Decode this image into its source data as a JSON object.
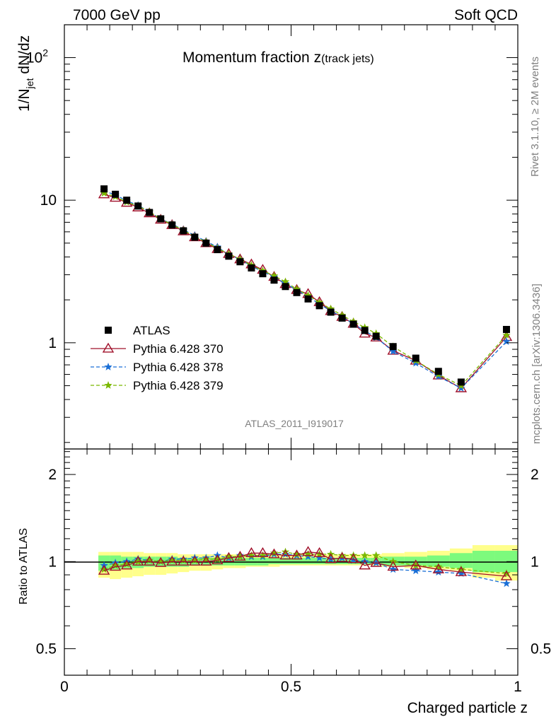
{
  "header": {
    "left": "7000 GeV pp",
    "right": "Soft QCD"
  },
  "side_text": {
    "top": "Rivet 3.1.10, ≥ 2M events",
    "bottom": "mcplots.cern.ch [arXiv:1306.3436]"
  },
  "analysis_id": "ATLAS_2011_I919017",
  "colors": {
    "atlas": "#000000",
    "p370": "#a0102a",
    "p378": "#1a6fd6",
    "p379": "#7ab800",
    "band_inner": "#7dfa7d",
    "band_outer": "#ffff8c"
  },
  "chart_data": [
    {
      "type": "line",
      "panel": "main",
      "title_main": "Momentum fraction z",
      "title_sub": "(track jets)",
      "ylabel": "1/N_jet dN/dz",
      "ylabel_main": "1/N",
      "ylabel_sub": "jet",
      "ylabel_tail": " dN/dz",
      "yscale": "log",
      "xlim": [
        0,
        1
      ],
      "ylim": [
        0.18,
        170
      ],
      "y_ticks": [
        {
          "v": 1,
          "label": "1"
        },
        {
          "v": 10,
          "label": "10"
        },
        {
          "v": 100,
          "label": "10",
          "sup": "2"
        }
      ],
      "x": [
        0.0875,
        0.1125,
        0.1375,
        0.1625,
        0.1875,
        0.2125,
        0.2375,
        0.2625,
        0.2875,
        0.3125,
        0.3375,
        0.3625,
        0.3875,
        0.4125,
        0.4375,
        0.4625,
        0.4875,
        0.5125,
        0.5375,
        0.5625,
        0.5875,
        0.6125,
        0.6375,
        0.6625,
        0.6875,
        0.725,
        0.775,
        0.825,
        0.875,
        0.975
      ],
      "series": [
        {
          "name": "ATLAS",
          "marker": "square",
          "values": [
            12.0,
            11.0,
            10.0,
            9.1,
            8.2,
            7.4,
            6.7,
            6.1,
            5.5,
            5.0,
            4.5,
            4.05,
            3.7,
            3.35,
            3.05,
            2.75,
            2.48,
            2.25,
            2.03,
            1.82,
            1.64,
            1.49,
            1.35,
            1.22,
            1.11,
            0.94,
            0.78,
            0.63,
            0.53,
            1.24
          ]
        },
        {
          "name": "Pythia 6.428 370",
          "marker": "triangle",
          "values": [
            11.0,
            10.4,
            9.6,
            8.9,
            8.1,
            7.3,
            6.7,
            6.05,
            5.5,
            5.0,
            4.55,
            4.2,
            3.85,
            3.55,
            3.25,
            2.9,
            2.58,
            2.35,
            2.2,
            1.93,
            1.67,
            1.52,
            1.36,
            1.16,
            1.09,
            0.88,
            0.75,
            0.59,
            0.48,
            1.1
          ]
        },
        {
          "name": "Pythia 6.428 378",
          "marker": "star",
          "values": [
            11.6,
            10.9,
            9.9,
            9.2,
            8.3,
            7.4,
            6.8,
            6.2,
            5.65,
            5.15,
            4.7,
            4.15,
            3.85,
            3.45,
            3.15,
            2.9,
            2.6,
            2.35,
            2.1,
            1.87,
            1.67,
            1.52,
            1.36,
            1.21,
            1.09,
            0.87,
            0.72,
            0.58,
            0.48,
            1.02
          ]
        },
        {
          "name": "Pythia 6.428 379",
          "marker": "star",
          "values": [
            11.2,
            10.6,
            9.7,
            9.1,
            8.3,
            7.4,
            6.75,
            6.15,
            5.55,
            5.1,
            4.6,
            4.2,
            3.85,
            3.5,
            3.2,
            2.95,
            2.68,
            2.38,
            2.15,
            1.92,
            1.73,
            1.56,
            1.41,
            1.28,
            1.16,
            0.94,
            0.75,
            0.6,
            0.5,
            1.13
          ]
        }
      ],
      "legend_position": "lower-left"
    },
    {
      "type": "line",
      "panel": "ratio",
      "ylabel": "Ratio to ATLAS",
      "xlabel": "Charged particle z",
      "yscale": "log",
      "xlim": [
        0,
        1
      ],
      "ylim": [
        0.405,
        2.45
      ],
      "y_ticks": [
        {
          "v": 0.5,
          "label": "0.5"
        },
        {
          "v": 1,
          "label": "1"
        },
        {
          "v": 2,
          "label": "2"
        }
      ],
      "x_ticks": [
        {
          "v": 0,
          "label": "0"
        },
        {
          "v": 0.5,
          "label": "0.5"
        },
        {
          "v": 1,
          "label": "1"
        }
      ],
      "band_edges": [
        0.075,
        0.1,
        0.125,
        0.15,
        0.175,
        0.2,
        0.225,
        0.25,
        0.275,
        0.3,
        0.325,
        0.35,
        0.375,
        0.4,
        0.425,
        0.45,
        0.475,
        0.5,
        0.525,
        0.55,
        0.575,
        0.6,
        0.625,
        0.65,
        0.675,
        0.7,
        0.75,
        0.8,
        0.85,
        0.9,
        0.95,
        1.0
      ],
      "band_inner": [
        [
          0.93,
          1.05
        ],
        [
          0.94,
          1.05
        ],
        [
          0.95,
          1.04
        ],
        [
          0.95,
          1.04
        ],
        [
          0.96,
          1.04
        ],
        [
          0.96,
          1.04
        ],
        [
          0.96,
          1.04
        ],
        [
          0.96,
          1.03
        ],
        [
          0.97,
          1.03
        ],
        [
          0.97,
          1.03
        ],
        [
          0.97,
          1.03
        ],
        [
          0.97,
          1.03
        ],
        [
          0.97,
          1.03
        ],
        [
          0.97,
          1.03
        ],
        [
          0.97,
          1.03
        ],
        [
          0.98,
          1.03
        ],
        [
          0.98,
          1.03
        ],
        [
          0.98,
          1.03
        ],
        [
          0.98,
          1.03
        ],
        [
          0.98,
          1.03
        ],
        [
          0.98,
          1.03
        ],
        [
          0.98,
          1.03
        ],
        [
          0.98,
          1.03
        ],
        [
          0.98,
          1.03
        ],
        [
          0.98,
          1.03
        ],
        [
          0.97,
          1.04
        ],
        [
          0.97,
          1.04
        ],
        [
          0.96,
          1.05
        ],
        [
          0.95,
          1.07
        ],
        [
          0.92,
          1.09
        ],
        [
          0.92,
          1.09
        ]
      ],
      "band_outer": [
        [
          0.88,
          1.08
        ],
        [
          0.87,
          1.08
        ],
        [
          0.88,
          1.08
        ],
        [
          0.89,
          1.08
        ],
        [
          0.9,
          1.07
        ],
        [
          0.9,
          1.07
        ],
        [
          0.91,
          1.07
        ],
        [
          0.92,
          1.06
        ],
        [
          0.93,
          1.06
        ],
        [
          0.93,
          1.06
        ],
        [
          0.94,
          1.06
        ],
        [
          0.95,
          1.06
        ],
        [
          0.95,
          1.06
        ],
        [
          0.96,
          1.06
        ],
        [
          0.96,
          1.06
        ],
        [
          0.96,
          1.06
        ],
        [
          0.97,
          1.06
        ],
        [
          0.97,
          1.06
        ],
        [
          0.97,
          1.06
        ],
        [
          0.97,
          1.06
        ],
        [
          0.97,
          1.06
        ],
        [
          0.97,
          1.06
        ],
        [
          0.97,
          1.06
        ],
        [
          0.97,
          1.06
        ],
        [
          0.97,
          1.06
        ],
        [
          0.96,
          1.07
        ],
        [
          0.95,
          1.08
        ],
        [
          0.94,
          1.09
        ],
        [
          0.93,
          1.11
        ],
        [
          0.88,
          1.14
        ],
        [
          0.86,
          1.14
        ]
      ],
      "series": [
        {
          "name": "Pythia 6.428 370",
          "values": [
            0.93,
            0.96,
            0.97,
            1.0,
            1.0,
            0.99,
            1.0,
            1.0,
            1.0,
            1.0,
            1.01,
            1.03,
            1.04,
            1.07,
            1.07,
            1.06,
            1.05,
            1.05,
            1.08,
            1.07,
            1.02,
            1.03,
            1.02,
            0.97,
            0.99,
            0.96,
            0.97,
            0.94,
            0.92,
            0.89
          ]
        },
        {
          "name": "Pythia 6.428 378",
          "values": [
            0.97,
            0.99,
            1.0,
            1.02,
            1.01,
            1.0,
            1.02,
            1.02,
            1.03,
            1.03,
            1.05,
            1.03,
            1.05,
            1.04,
            1.04,
            1.06,
            1.06,
            1.05,
            1.04,
            1.03,
            1.02,
            1.03,
            1.01,
            1.0,
            0.99,
            0.94,
            0.93,
            0.92,
            0.91,
            0.84
          ]
        },
        {
          "name": "Pythia 6.428 379",
          "values": [
            0.94,
            0.97,
            0.98,
            1.0,
            1.01,
            1.0,
            1.01,
            1.01,
            1.01,
            1.02,
            1.02,
            1.04,
            1.04,
            1.05,
            1.05,
            1.07,
            1.08,
            1.06,
            1.06,
            1.06,
            1.06,
            1.05,
            1.05,
            1.05,
            1.05,
            1.0,
            0.97,
            0.96,
            0.94,
            0.91
          ]
        }
      ]
    }
  ]
}
